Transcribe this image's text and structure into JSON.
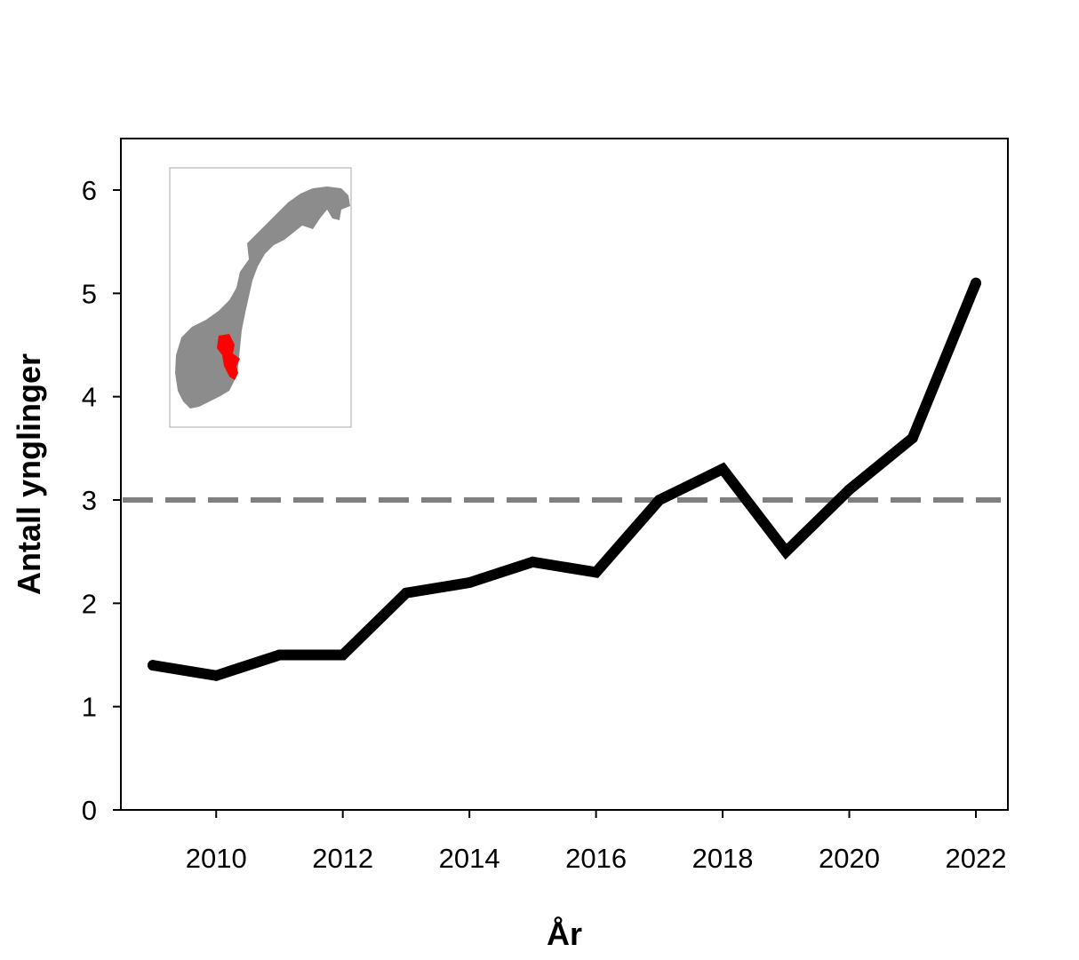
{
  "chart_data": {
    "type": "line",
    "xlabel": "År",
    "ylabel": "Antall ynglinger",
    "xlim": [
      2008.5,
      2022.5
    ],
    "ylim": [
      0,
      6.5
    ],
    "x_ticks": [
      2010,
      2012,
      2014,
      2016,
      2018,
      2020,
      2022
    ],
    "x_tick_labels": [
      "2010",
      "2012",
      "2014",
      "2016",
      "2018",
      "2020",
      "2022"
    ],
    "y_ticks": [
      0,
      1,
      2,
      3,
      4,
      5,
      6
    ],
    "y_tick_labels": [
      "0",
      "1",
      "2",
      "3",
      "4",
      "5",
      "6"
    ],
    "grid": false,
    "series": [
      {
        "x": [
          2009,
          2010,
          2011,
          2012,
          2013,
          2014,
          2015,
          2016,
          2017,
          2018,
          2019,
          2020,
          2021,
          2022
        ],
        "values": [
          1.4,
          1.3,
          1.5,
          1.5,
          2.1,
          2.2,
          2.4,
          2.3,
          3.0,
          3.3,
          2.5,
          3.1,
          3.6,
          5.1
        ],
        "color": "#000000",
        "style": "solid"
      }
    ],
    "reference_lines": [
      {
        "y": 3,
        "color": "#808080",
        "style": "dashed"
      }
    ],
    "inset": {
      "type": "map",
      "location": "top-left",
      "land_color": "#8c8c8c",
      "highlight_color": "#ff0000"
    }
  }
}
